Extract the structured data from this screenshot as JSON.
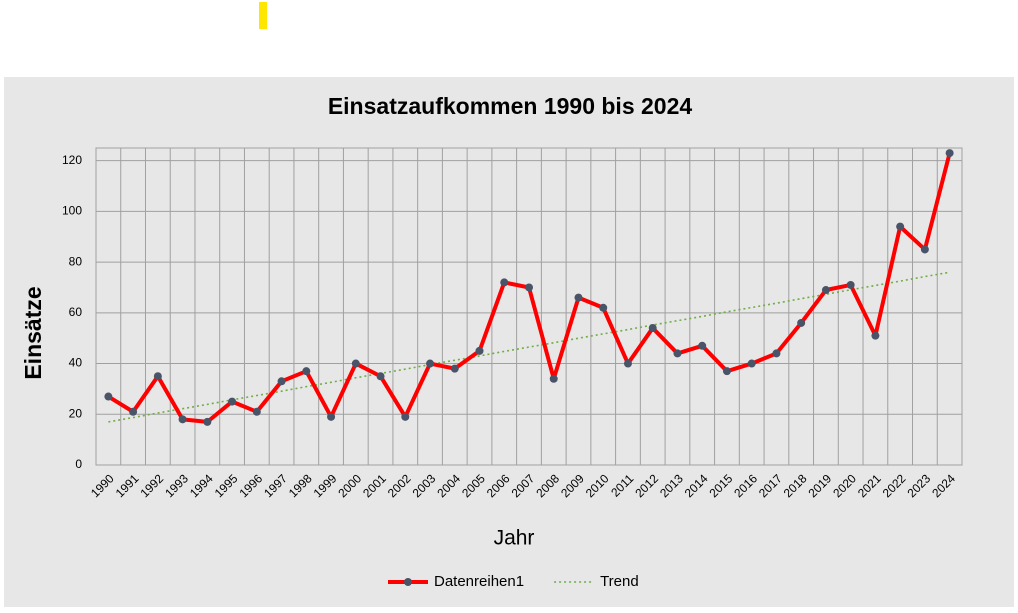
{
  "chart_data": {
    "type": "line",
    "title": "Einsatzaufkommen 1990 bis 2024",
    "x_label": "Jahr",
    "y_label": "Einsätze",
    "categories": [
      "1990",
      "1991",
      "1992",
      "1993",
      "1994",
      "1995",
      "1996",
      "1997",
      "1998",
      "1999",
      "2000",
      "2001",
      "2002",
      "2003",
      "2004",
      "2005",
      "2006",
      "2007",
      "2008",
      "2009",
      "2010",
      "2011",
      "2012",
      "2013",
      "2014",
      "2015",
      "2016",
      "2017",
      "2018",
      "2019",
      "2020",
      "2021",
      "2022",
      "2023",
      "2024"
    ],
    "series": [
      {
        "name": "Datenreihen1",
        "color": "#ff0000",
        "marker_color": "#4a5468",
        "values": [
          27,
          21,
          35,
          18,
          17,
          25,
          21,
          33,
          37,
          19,
          40,
          35,
          19,
          40,
          38,
          45,
          72,
          70,
          34,
          66,
          62,
          40,
          54,
          44,
          47,
          37,
          40,
          44,
          56,
          69,
          71,
          51,
          94,
          85,
          123
        ]
      },
      {
        "name": "Trend",
        "color": "#70ad47",
        "dashed": true,
        "values": [
          17,
          18.7,
          20.5,
          22.2,
          23.9,
          25.7,
          27.4,
          29.1,
          30.9,
          32.6,
          34.4,
          36.1,
          37.8,
          39.6,
          41.3,
          43,
          44.8,
          46.5,
          48.2,
          50,
          51.7,
          53.4,
          55.2,
          56.9,
          58.6,
          60.4,
          62.1,
          63.8,
          65.6,
          67.3,
          69.1,
          70.8,
          72.5,
          74.3,
          76
        ]
      }
    ],
    "ylim": [
      0,
      125
    ],
    "yticks": [
      0,
      20,
      40,
      60,
      80,
      100,
      120
    ],
    "grid": true,
    "legend": "bottom"
  }
}
